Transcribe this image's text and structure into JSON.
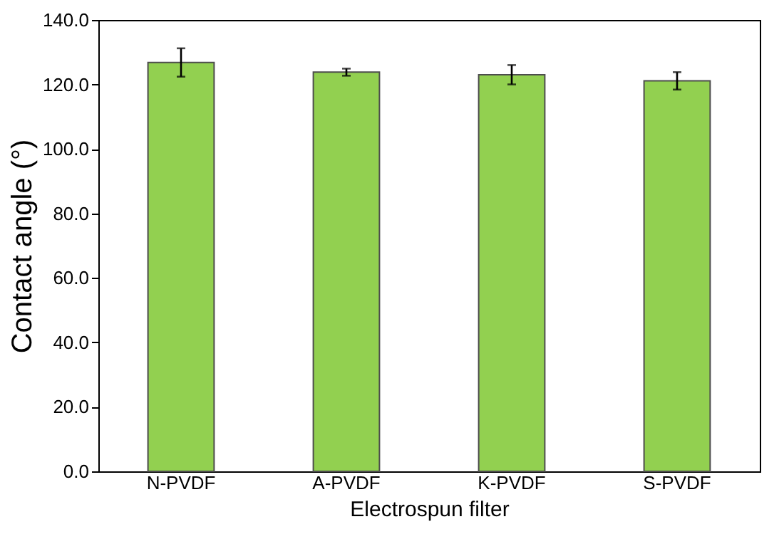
{
  "chart_data": {
    "type": "bar",
    "xlabel": "Electrospun filter",
    "ylabel": "Contact angle (°)",
    "categories": [
      "N-PVDF",
      "A-PVDF",
      "K-PVDF",
      "S-PVDF"
    ],
    "values": [
      126.8,
      123.8,
      123.0,
      121.1
    ],
    "errors": [
      4.4,
      1.1,
      3.0,
      2.7
    ],
    "color": "#92d050",
    "ylim": [
      0,
      140
    ],
    "yticks": [
      {
        "value": 0,
        "label": "0.0"
      },
      {
        "value": 20,
        "label": "20.0"
      },
      {
        "value": 40,
        "label": "40.0"
      },
      {
        "value": 60,
        "label": "60.0"
      },
      {
        "value": 80,
        "label": "80.0"
      },
      {
        "value": 100,
        "label": "100.0"
      },
      {
        "value": 120,
        "label": "120.0"
      },
      {
        "value": 140,
        "label": "140.0"
      }
    ],
    "grid": false
  }
}
